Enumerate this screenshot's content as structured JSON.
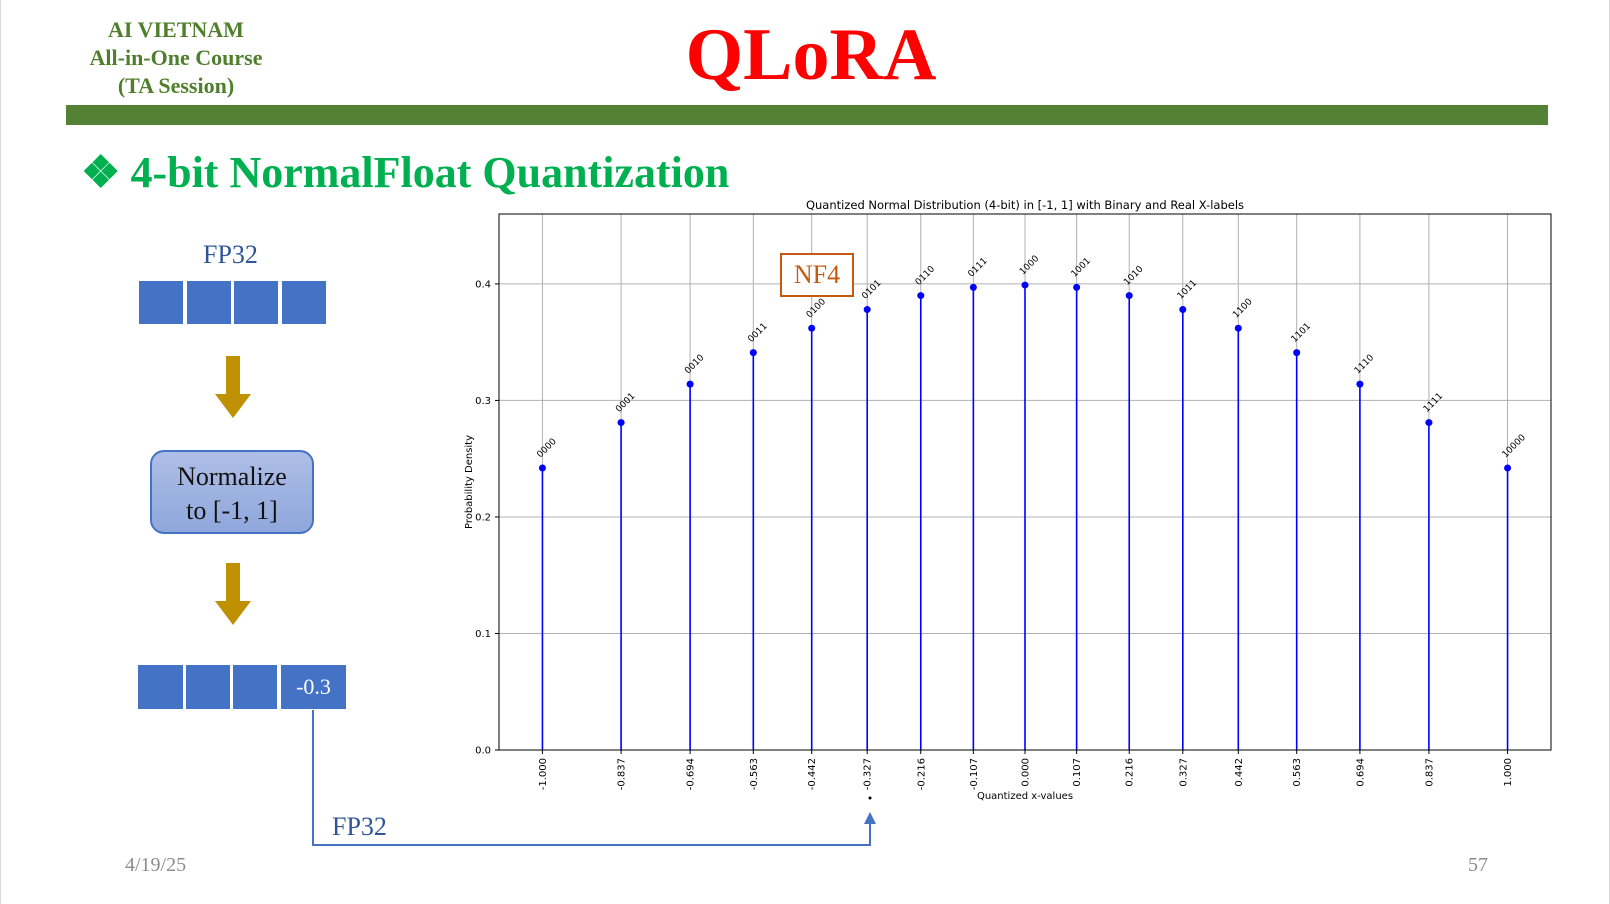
{
  "header": {
    "org_line1": "AI VIETNAM",
    "org_line2": "All-in-One Course",
    "org_line3": "(TA Session)",
    "title": "QLoRA"
  },
  "subtitle": {
    "bullet": "❖",
    "text": "4-bit NormalFloat Quantization"
  },
  "diagram": {
    "top_label": "FP32",
    "normalize_line1": "Normalize",
    "normalize_line2": "to [-1, 1]",
    "cell_value": "-0.3",
    "bottom_label": "FP32",
    "nf4_label": "NF4",
    "colors": {
      "cell": "#4472c4",
      "arrow": "#bf9000",
      "connector": "#4472c4",
      "nf4": "#c55a11"
    }
  },
  "footer": {
    "date": "4/19/25",
    "page": "57"
  },
  "chart_data": {
    "type": "scatter",
    "style": "stem",
    "title": "Quantized Normal Distribution (4-bit) in [-1, 1] with Binary and Real X-labels",
    "xlabel": "Quantized x-values",
    "ylabel": "Probability Density",
    "ylim": [
      0.0,
      0.46
    ],
    "yticks": [
      "0.0",
      "0.1",
      "0.2",
      "0.3",
      "0.4"
    ],
    "grid": true,
    "color": "#0000ff",
    "x": [
      -1.0,
      -0.837,
      -0.694,
      -0.563,
      -0.442,
      -0.327,
      -0.216,
      -0.107,
      0.0,
      0.107,
      0.216,
      0.327,
      0.442,
      0.563,
      0.694,
      0.837,
      1.0
    ],
    "x_labels": [
      "-1.000",
      "-0.837",
      "-0.694",
      "-0.563",
      "-0.442",
      "-0.327",
      "-0.216",
      "-0.107",
      "0.000",
      "0.107",
      "0.216",
      "0.327",
      "0.442",
      "0.563",
      "0.694",
      "0.837",
      "1.000"
    ],
    "values": [
      0.242,
      0.281,
      0.314,
      0.341,
      0.362,
      0.378,
      0.39,
      0.397,
      0.399,
      0.397,
      0.39,
      0.378,
      0.362,
      0.341,
      0.314,
      0.281,
      0.242
    ],
    "point_labels": [
      "0000",
      "0001",
      "0010",
      "0011",
      "0100",
      "0101",
      "0110",
      "0111",
      "1000",
      "1001",
      "1010",
      "1011",
      "1100",
      "1101",
      "1110",
      "1111",
      "10000"
    ]
  }
}
